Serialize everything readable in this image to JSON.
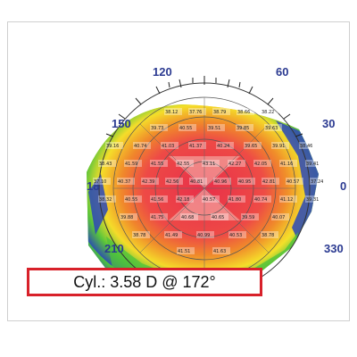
{
  "caption": {
    "text": "Cyl.: 3.58 D @ 172°"
  },
  "colors": {
    "frame_border": "#cfcfcf",
    "caption_border": "#d8212a",
    "axis_labels": "#2b3a91",
    "map_center": "#e8304a",
    "map_mid": "#f08a2a",
    "map_outer_yellow": "#f5e02a",
    "map_outer_green": "#4cc23c",
    "map_edge_blue": "#2a46b8"
  },
  "axis_labels": {
    "left_top": "150",
    "top_left": "120",
    "top_right": "60",
    "right_top": "30",
    "left_mid": "18",
    "right_mid": "0",
    "left_bottom": "210",
    "right_bottom": "330"
  },
  "keratometry_values": [
    "38.12",
    "37.76",
    "38.79",
    "38.66",
    "38.22",
    "39.73",
    "40.55",
    "39.51",
    "39.85",
    "39.63",
    "39.16",
    "40.74",
    "41.03",
    "41.37",
    "40.24",
    "39.65",
    "39.91",
    "38.46",
    "38.43",
    "41.59",
    "41.55",
    "42.55",
    "43.11",
    "42.27",
    "42.05",
    "41.16",
    "39.41",
    "37.10",
    "40.37",
    "42.39",
    "42.56",
    "40.81",
    "40.96",
    "40.95",
    "42.81",
    "40.57",
    "37.24",
    "38.32",
    "40.55",
    "41.56",
    "42.18",
    "40.57",
    "41.80",
    "40.74",
    "41.12",
    "39.31",
    "39.88",
    "41.75",
    "40.68",
    "40.65",
    "39.59",
    "40.07",
    "38.78",
    "41.49",
    "40.99",
    "40.53",
    "38.78",
    "41.51",
    "41.63"
  ]
}
